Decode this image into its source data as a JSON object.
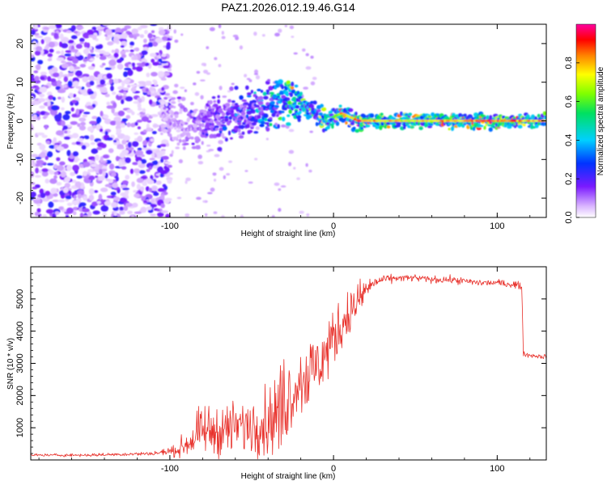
{
  "page_title": "PAZ1.2026.012.19.46.G14",
  "chart_data": [
    {
      "type": "heatmap",
      "title": "PAZ1.2026.012.19.46.G14",
      "xlabel": "Height of straight line (km)",
      "ylabel": "Frequency (Hz)",
      "xlim": [
        -185,
        130
      ],
      "ylim": [
        -25,
        25
      ],
      "x_ticks": [
        -100,
        0,
        100
      ],
      "x_tick_labels": [
        "-100",
        "0",
        "100"
      ],
      "y_ticks": [
        -20,
        -10,
        0,
        10,
        20
      ],
      "y_tick_labels": [
        "-20",
        "-10",
        "0",
        "10",
        "20"
      ],
      "ridge": {
        "x": [
          -105,
          -95,
          -85,
          -75,
          -65,
          -55,
          -45,
          -35,
          -28,
          -20,
          -15,
          -10,
          -5,
          0,
          5,
          10,
          15,
          20,
          30,
          40,
          60,
          80,
          100,
          120,
          130
        ],
        "y": [
          1,
          0,
          -1,
          0,
          1,
          2,
          3,
          5,
          6,
          5,
          3,
          1,
          0,
          1,
          2,
          1,
          0,
          0,
          0,
          0,
          0,
          0,
          0,
          0,
          0
        ],
        "amplitude": [
          0.1,
          0.15,
          0.2,
          0.25,
          0.3,
          0.35,
          0.45,
          0.55,
          0.7,
          0.75,
          0.6,
          0.5,
          0.9,
          0.6,
          0.85,
          0.7,
          0.9,
          0.85,
          0.8,
          0.75,
          0.8,
          0.85,
          0.9,
          0.8,
          0.8
        ]
      },
      "noise_region_x": [
        -185,
        -100
      ],
      "colorbar": {
        "label": "Normalized spectral amplitude",
        "range": [
          0,
          1
        ],
        "ticks": [
          0.0,
          0.2,
          0.4,
          0.6,
          0.8
        ],
        "tick_labels": [
          "0.0",
          "0.2",
          "0.4",
          "0.6",
          "0.8"
        ]
      }
    },
    {
      "type": "line",
      "xlabel": "Height of straight line (km)",
      "ylabel": "SNR (10 * v/v)",
      "xlim": [
        -185,
        130
      ],
      "ylim": [
        0,
        6000
      ],
      "x_ticks": [
        -100,
        0,
        100
      ],
      "x_tick_labels": [
        "-100",
        "0",
        "100"
      ],
      "y_ticks": [
        1000,
        2000,
        3000,
        4000,
        5000
      ],
      "y_tick_labels": [
        "1000",
        "2000",
        "3000",
        "4000",
        "5000"
      ],
      "series": [
        {
          "name": "SNR",
          "color": "#e8302a",
          "x": [
            -185,
            -150,
            -110,
            -95,
            -90,
            -85,
            -80,
            -70,
            -60,
            -50,
            -40,
            -35,
            -30,
            -25,
            -20,
            -15,
            -10,
            -5,
            0,
            5,
            10,
            15,
            20,
            25,
            30,
            40,
            50,
            60,
            70,
            80,
            90,
            100,
            110,
            115,
            116,
            120,
            130
          ],
          "mean": [
            150,
            150,
            200,
            300,
            500,
            700,
            900,
            900,
            1000,
            1100,
            1200,
            1400,
            1800,
            2200,
            2500,
            2700,
            2900,
            3300,
            3800,
            4200,
            4600,
            4900,
            5300,
            5500,
            5600,
            5650,
            5650,
            5600,
            5600,
            5550,
            5500,
            5500,
            5450,
            5400,
            3300,
            3250,
            3200
          ],
          "spread": [
            50,
            50,
            70,
            200,
            500,
            700,
            800,
            900,
            900,
            1000,
            1200,
            1500,
            1500,
            1400,
            1300,
            1200,
            1200,
            1100,
            1000,
            900,
            800,
            700,
            400,
            200,
            150,
            120,
            120,
            120,
            120,
            120,
            120,
            120,
            120,
            120,
            80,
            80,
            80
          ]
        }
      ]
    }
  ]
}
